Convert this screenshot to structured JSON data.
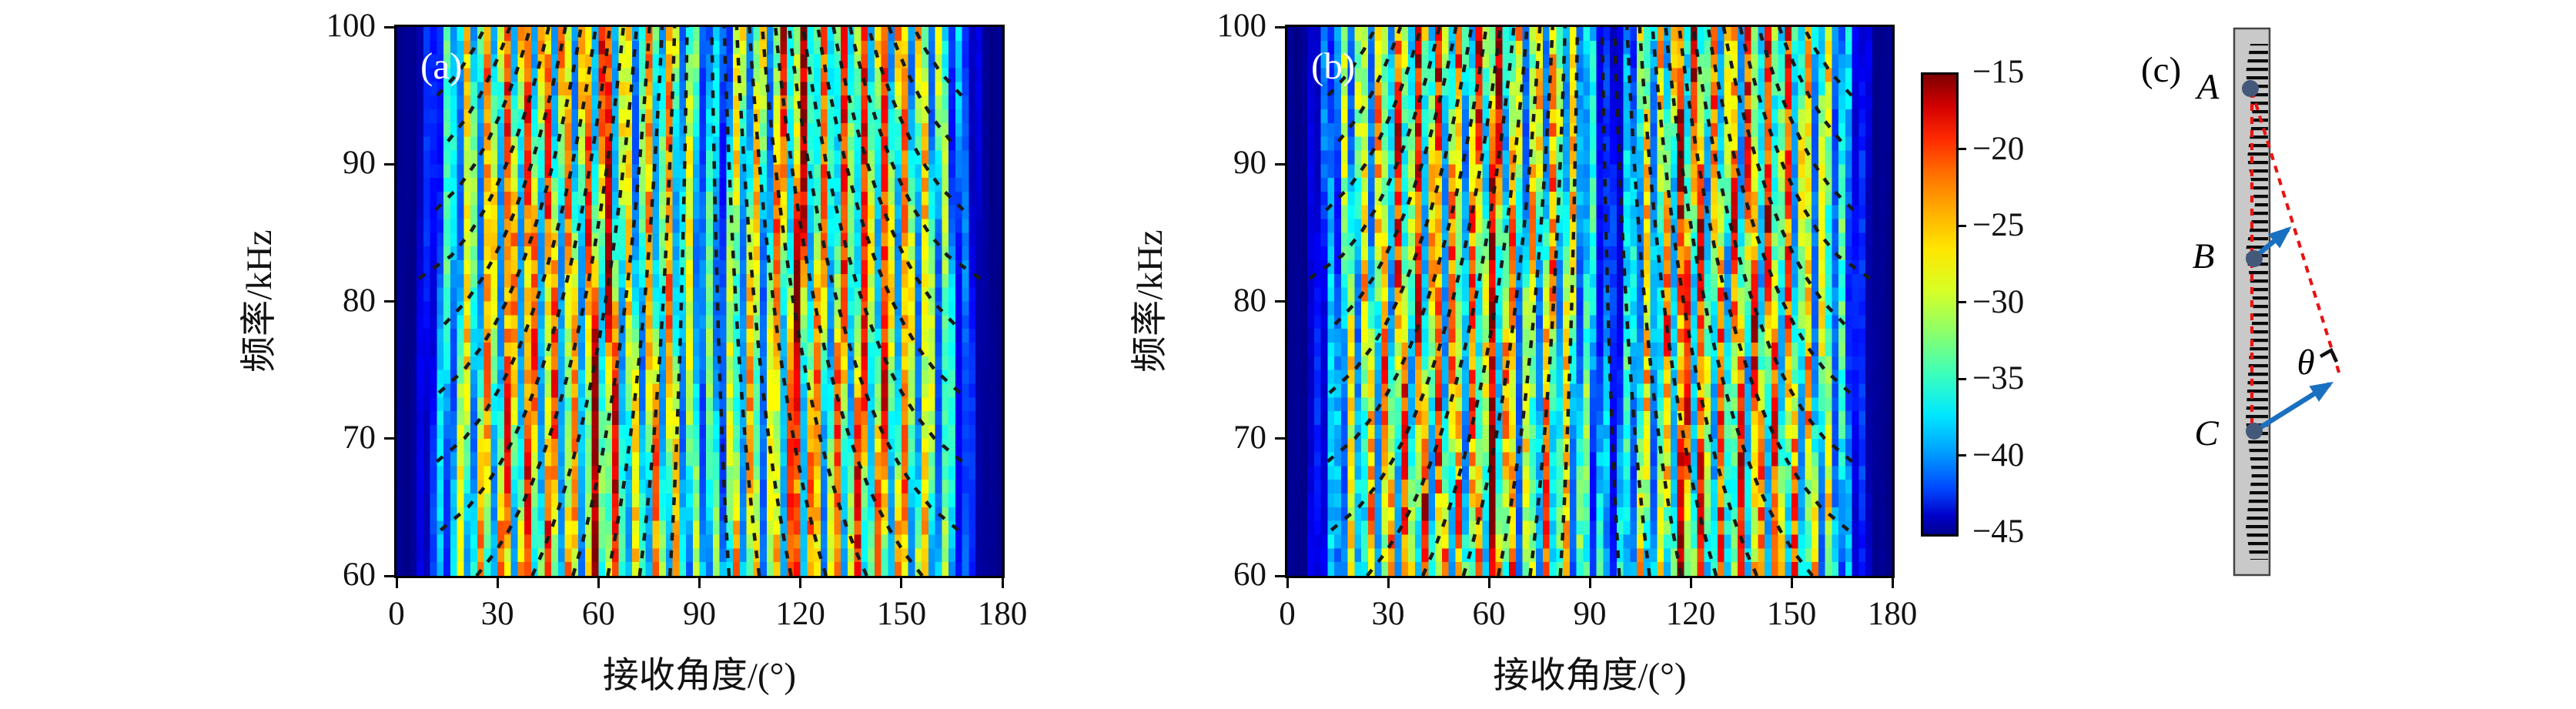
{
  "figure": {
    "background": "#ffffff"
  },
  "panels": [
    {
      "label": "(a)",
      "xlabel": "接收角度/(°)",
      "ylabel": "频率/kHz",
      "xticks": [
        "0",
        "30",
        "60",
        "90",
        "120",
        "150",
        "180"
      ],
      "yticks": [
        "100",
        "90",
        "80",
        "70",
        "60"
      ]
    },
    {
      "label": "(b)",
      "xlabel": "接收角度/(°)",
      "ylabel": "频率/kHz",
      "xticks": [
        "0",
        "30",
        "60",
        "90",
        "120",
        "150",
        "180"
      ],
      "yticks": [
        "100",
        "90",
        "80",
        "70",
        "60"
      ]
    }
  ],
  "colorbar": {
    "ticks": [
      "−15",
      "−20",
      "−25",
      "−30",
      "−35",
      "−40",
      "−45"
    ]
  },
  "diagram": {
    "label": "(c)",
    "point_a": "A",
    "point_b": "B",
    "point_c": "C",
    "theta": "θ"
  },
  "colors": {
    "accent_red": "#e81313",
    "accent_blue": "#1a70c0",
    "dot_fill": "#44587a",
    "array_gray": "#c9c9c9",
    "dash_overlay": "#1a1a1a"
  },
  "chart_data": [
    {
      "type": "heatmap",
      "panel": "(a)",
      "title": "",
      "xlabel": "接收角度/(°)",
      "ylabel": "频率/kHz",
      "x_range": [
        0,
        180
      ],
      "x_ticks": [
        0,
        30,
        60,
        90,
        120,
        150,
        180
      ],
      "y_range": [
        60,
        100
      ],
      "y_ticks": [
        60,
        70,
        80,
        90,
        100
      ],
      "value_range_db": [
        -45,
        -15
      ],
      "colormap": "jet",
      "colorbar_ticks": [
        -15,
        -20,
        -25,
        -30,
        -35,
        -40,
        -45
      ],
      "overlay": "black dashed mode/dispersion curves fanning from top-center toward bottom edges",
      "description": "Beam intensity (dB) vs receive angle and frequency; bright red ridges near 60° and 120°, blue at angular edges",
      "synth": {
        "phase": 0.6,
        "seed": 7,
        "stripe_period": 6.2,
        "grain": 0.22,
        "dip_depth": 0.5,
        "dip_center": 96.5,
        "dip_width": 4.5,
        "dip_ufloor": 0.35
      }
    },
    {
      "type": "heatmap",
      "panel": "(b)",
      "title": "",
      "xlabel": "接收角度/(°)",
      "ylabel": "频率/kHz",
      "x_range": [
        0,
        180
      ],
      "x_ticks": [
        0,
        30,
        60,
        90,
        120,
        150,
        180
      ],
      "y_range": [
        60,
        100
      ],
      "y_ticks": [
        60,
        70,
        80,
        90,
        100
      ],
      "value_range_db": [
        -45,
        -15
      ],
      "colormap": "jet",
      "colorbar_ticks": [
        -15,
        -20,
        -25,
        -30,
        -35,
        -40,
        -45
      ],
      "overlay": "black dashed mode/dispersion curves fanning from top-center toward bottom edges",
      "description": "Measured beam intensity (dB); finer vertical striping, strong dark band near 95°–105°",
      "synth": {
        "phase": 2.9,
        "seed": 31,
        "stripe_period": 5.5,
        "grain": 0.34,
        "dip_depth": 0.85,
        "dip_center": 97.5,
        "dip_width": 6.0,
        "dip_ufloor": 0.55
      }
    },
    {
      "type": "diagram",
      "panel": "(c)",
      "elements": [
        "vertical linear transducer array with comb-like element teeth",
        "reference points A (top), B (middle), C (bottom) on the array",
        "red dashed vertical line A–C along the array",
        "red dashed wavefront line from A to the right-angle vertex",
        "blue arrows at B and C showing arrival direction",
        "right-angle mark between wavefront and ray",
        "angle θ between ray and wavefront"
      ]
    }
  ]
}
